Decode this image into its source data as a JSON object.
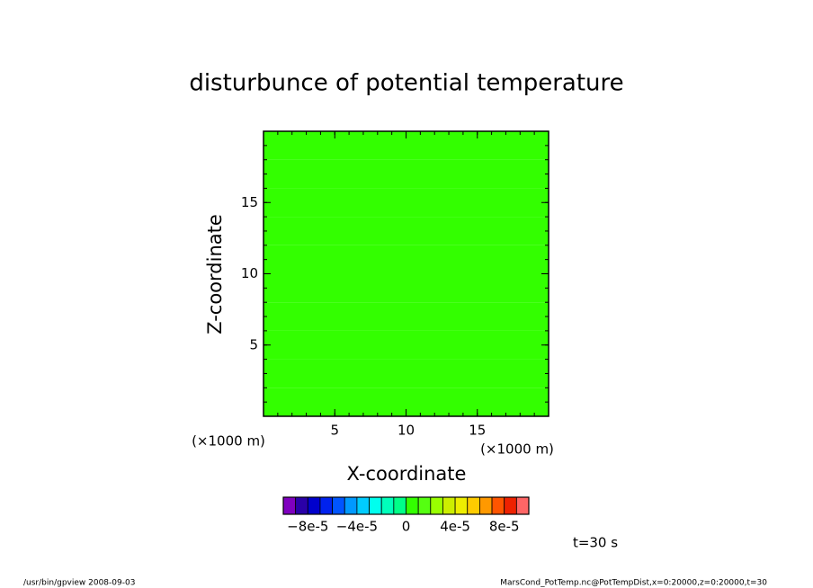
{
  "chart_data": {
    "type": "shade",
    "title": "disturbunce of potential temperature",
    "xlabel": "X-coordinate",
    "ylabel": "Z-coordinate",
    "x_unit": "(×1000 m)",
    "y_unit": "(×1000 m)",
    "xlim": [
      0,
      20
    ],
    "ylim": [
      0,
      20
    ],
    "xticks": [
      5,
      10,
      15
    ],
    "yticks": [
      5,
      10,
      15
    ],
    "minor_tick_step": 1,
    "z_bins": [
      0,
      2,
      4,
      6,
      8,
      10,
      12,
      14,
      16,
      18,
      20
    ],
    "values": [
      3e-06,
      6e-06,
      3e-06,
      6e-06,
      3e-06,
      6e-06,
      3e-06,
      6e-06,
      3e-06,
      6e-06
    ],
    "levels": [
      -0.0001,
      -9e-05,
      -8e-05,
      -7e-05,
      -6e-05,
      -5e-05,
      -4e-05,
      -3e-05,
      -2e-05,
      -1e-05,
      0,
      1e-05,
      2e-05,
      3e-05,
      4e-05,
      5e-05,
      6e-05,
      7e-05,
      8e-05,
      9e-05,
      0.0001
    ],
    "colors": [
      "#7f00bf",
      "#2a00a8",
      "#0000cc",
      "#0022ee",
      "#0055ff",
      "#0099ff",
      "#00ccff",
      "#00ffee",
      "#00ffbb",
      "#00ff88",
      "#33ff00",
      "#55ff11",
      "#99ff00",
      "#ccee00",
      "#eeee00",
      "#ffcc00",
      "#ff9900",
      "#ff5500",
      "#ee2200",
      "#ff6666",
      "#ff9999"
    ],
    "colorbar_ticks": [
      {
        "value": -8e-05,
        "label": "−8e-5"
      },
      {
        "value": -4e-05,
        "label": "−4e-5"
      },
      {
        "value": 0,
        "label": "0"
      },
      {
        "value": 4e-05,
        "label": "4e-5"
      },
      {
        "value": 8e-05,
        "label": "8e-5"
      }
    ],
    "annotations": {
      "time": "t=30 s",
      "program": "/usr/bin/gpview   2008-09-03",
      "source": "MarsCond_PotTemp.nc@PotTempDist,x=0:20000,z=0:20000,t=30"
    }
  }
}
